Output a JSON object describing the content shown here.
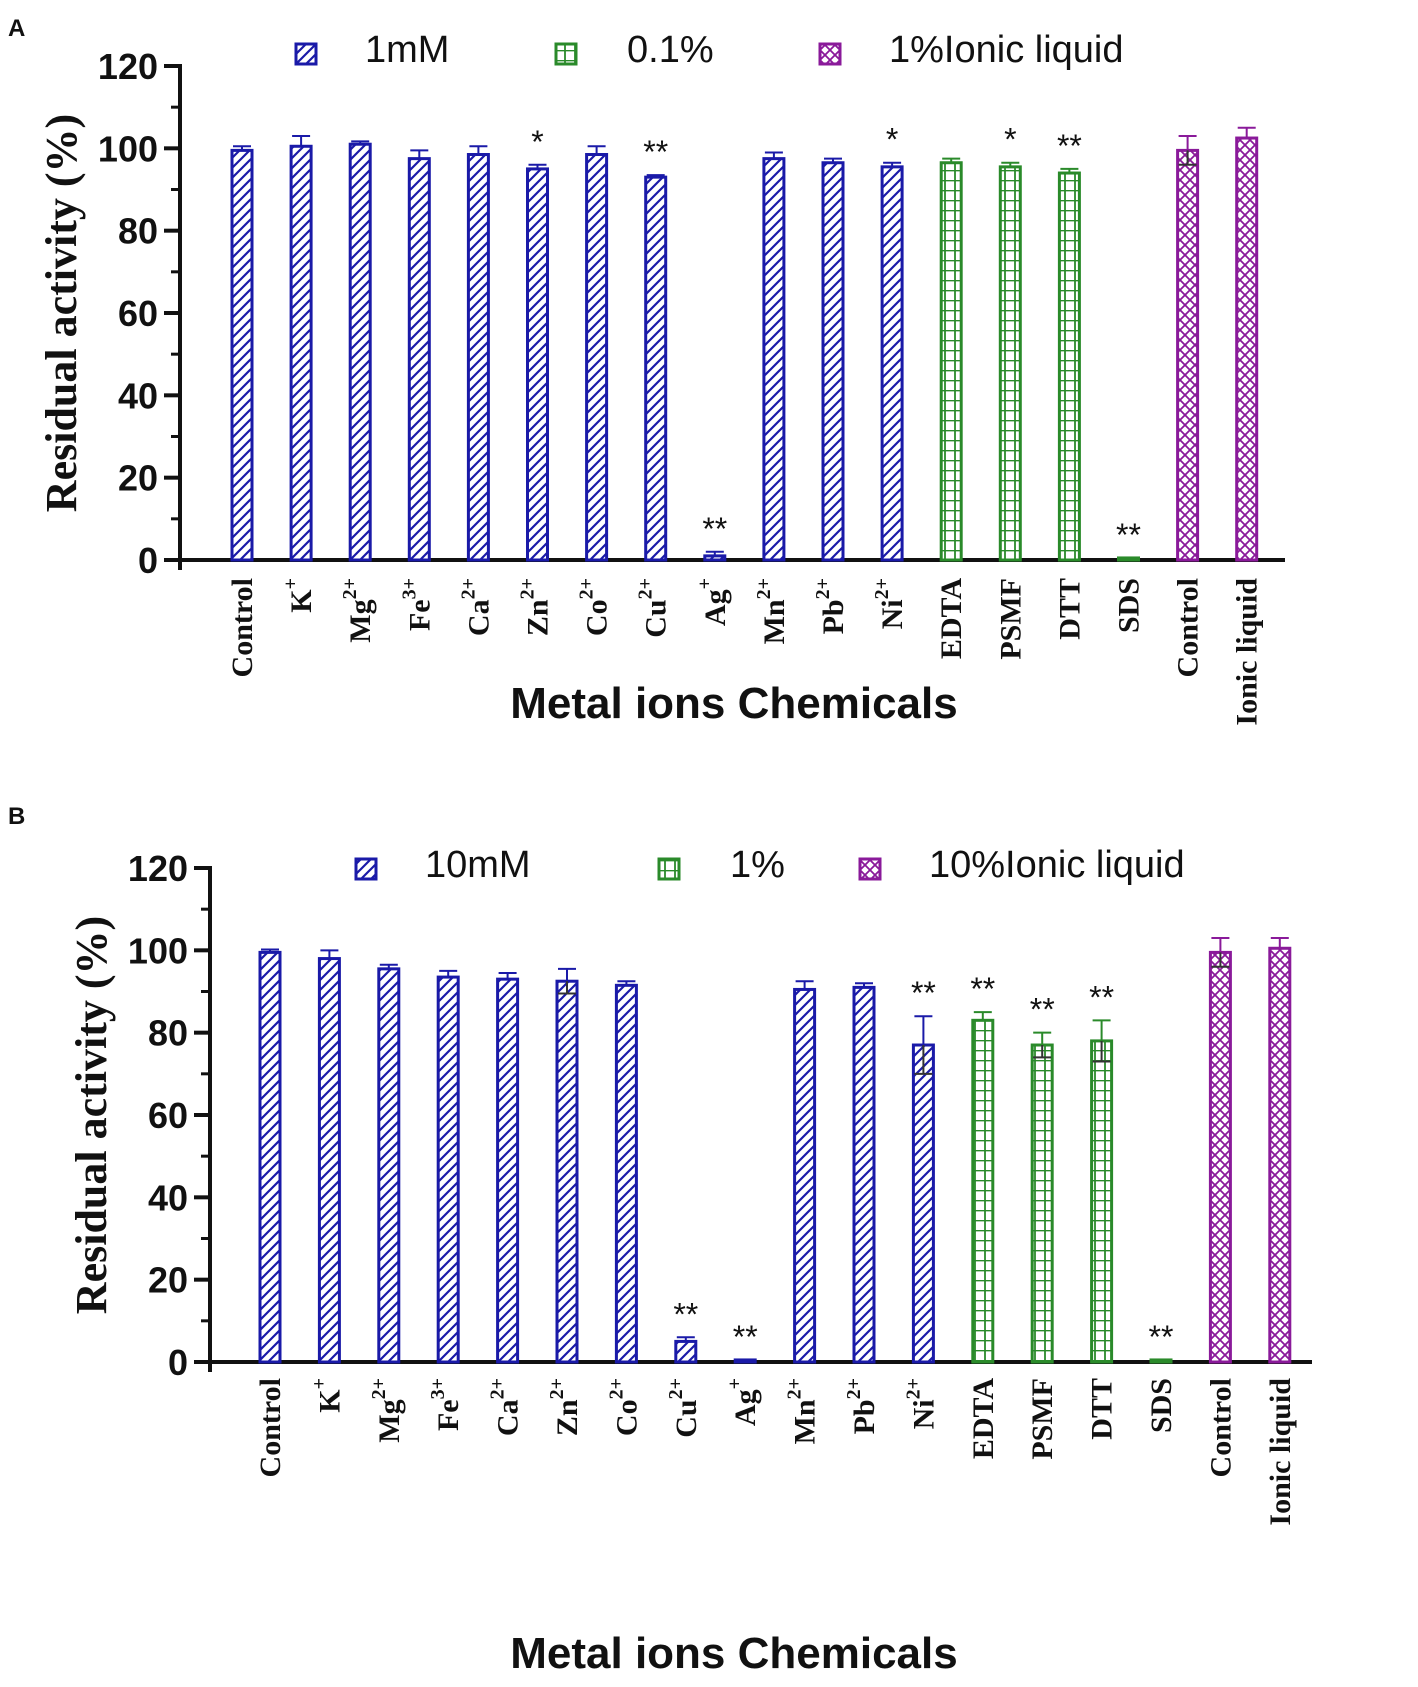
{
  "colors": {
    "blue": "#1a1aa8",
    "green": "#2a8a2a",
    "purple": "#8a1a9a",
    "axis": "#111111"
  },
  "chart_data": [
    {
      "type": "bar",
      "panel": "A",
      "ylabel": "Residual activity (%)",
      "xlabel": "Metal ions Chemicals",
      "ylim": [
        0,
        120
      ],
      "yticks": [
        "0",
        "20",
        "40",
        "60",
        "80",
        "100",
        "120"
      ],
      "legend": [
        {
          "label": "1mM",
          "color": "blue",
          "pattern": "hatch-diagonal"
        },
        {
          "label": "0.1%",
          "color": "green",
          "pattern": "grid"
        },
        {
          "label": "1%Ionic liquid",
          "color": "purple",
          "pattern": "crosshatch"
        }
      ],
      "bars": [
        {
          "label": "Control",
          "sup": "",
          "value": 99.5,
          "err": 1.0,
          "color": "blue",
          "pattern": "hatch-diagonal",
          "sig": ""
        },
        {
          "label": "K",
          "sup": "+",
          "value": 100.5,
          "err": 2.5,
          "color": "blue",
          "pattern": "hatch-diagonal",
          "sig": ""
        },
        {
          "label": "Mg",
          "sup": "2+",
          "value": 101.0,
          "err": 0.7,
          "color": "blue",
          "pattern": "hatch-diagonal",
          "sig": ""
        },
        {
          "label": "Fe",
          "sup": "3+",
          "value": 97.5,
          "err": 2.0,
          "color": "blue",
          "pattern": "hatch-diagonal",
          "sig": ""
        },
        {
          "label": "Ca",
          "sup": "2+",
          "value": 98.5,
          "err": 2.0,
          "color": "blue",
          "pattern": "hatch-diagonal",
          "sig": ""
        },
        {
          "label": "Zn",
          "sup": "2+",
          "value": 95.0,
          "err": 1.0,
          "color": "blue",
          "pattern": "hatch-diagonal",
          "sig": "*"
        },
        {
          "label": "Co",
          "sup": "2+",
          "value": 98.5,
          "err": 2.0,
          "color": "blue",
          "pattern": "hatch-diagonal",
          "sig": ""
        },
        {
          "label": "Cu",
          "sup": "2+",
          "value": 93.0,
          "err": 0.5,
          "color": "blue",
          "pattern": "hatch-diagonal",
          "sig": "**"
        },
        {
          "label": "Ag",
          "sup": "+",
          "value": 1.0,
          "err": 1.0,
          "color": "blue",
          "pattern": "hatch-diagonal",
          "sig": "**"
        },
        {
          "label": "Mn",
          "sup": "2+",
          "value": 97.5,
          "err": 1.5,
          "color": "blue",
          "pattern": "hatch-diagonal",
          "sig": ""
        },
        {
          "label": "Pb",
          "sup": "2+",
          "value": 96.5,
          "err": 1.0,
          "color": "blue",
          "pattern": "hatch-diagonal",
          "sig": ""
        },
        {
          "label": "Ni",
          "sup": "2+",
          "value": 95.5,
          "err": 1.0,
          "color": "blue",
          "pattern": "hatch-diagonal",
          "sig": "*"
        },
        {
          "label": "EDTA",
          "sup": "",
          "value": 96.5,
          "err": 1.0,
          "color": "green",
          "pattern": "grid",
          "sig": ""
        },
        {
          "label": "PSMF",
          "sup": "",
          "value": 95.5,
          "err": 1.0,
          "color": "green",
          "pattern": "grid",
          "sig": "*"
        },
        {
          "label": "DTT",
          "sup": "",
          "value": 94.0,
          "err": 1.0,
          "color": "green",
          "pattern": "grid",
          "sig": "**"
        },
        {
          "label": "SDS",
          "sup": "",
          "value": 0.5,
          "err": 0,
          "color": "green",
          "pattern": "grid",
          "sig": "**"
        },
        {
          "label": "Control",
          "sup": "",
          "value": 99.5,
          "err": 3.5,
          "color": "purple",
          "pattern": "crosshatch",
          "sig": ""
        },
        {
          "label": "Ionic liquid",
          "sup": "",
          "value": 102.5,
          "err": 2.5,
          "color": "purple",
          "pattern": "crosshatch",
          "sig": ""
        }
      ]
    },
    {
      "type": "bar",
      "panel": "B",
      "ylabel": "Residual activity (%)",
      "xlabel": "Metal ions Chemicals",
      "ylim": [
        0,
        120
      ],
      "yticks": [
        "0",
        "20",
        "40",
        "60",
        "80",
        "100",
        "120"
      ],
      "legend": [
        {
          "label": "10mM",
          "color": "blue",
          "pattern": "hatch-diagonal"
        },
        {
          "label": "1%",
          "color": "green",
          "pattern": "grid"
        },
        {
          "label": "10%Ionic liquid",
          "color": "purple",
          "pattern": "crosshatch"
        }
      ],
      "bars": [
        {
          "label": "Control",
          "sup": "",
          "value": 99.5,
          "err": 0.7,
          "color": "blue",
          "pattern": "hatch-diagonal",
          "sig": ""
        },
        {
          "label": "K",
          "sup": "+",
          "value": 98.0,
          "err": 2.0,
          "color": "blue",
          "pattern": "hatch-diagonal",
          "sig": ""
        },
        {
          "label": "Mg",
          "sup": "2+",
          "value": 95.5,
          "err": 1.0,
          "color": "blue",
          "pattern": "hatch-diagonal",
          "sig": ""
        },
        {
          "label": "Fe",
          "sup": "3+",
          "value": 93.5,
          "err": 1.5,
          "color": "blue",
          "pattern": "hatch-diagonal",
          "sig": ""
        },
        {
          "label": "Ca",
          "sup": "2+",
          "value": 93.0,
          "err": 1.5,
          "color": "blue",
          "pattern": "hatch-diagonal",
          "sig": ""
        },
        {
          "label": "Zn",
          "sup": "2+",
          "value": 92.5,
          "err": 3.0,
          "color": "blue",
          "pattern": "hatch-diagonal",
          "sig": ""
        },
        {
          "label": "Co",
          "sup": "2+",
          "value": 91.5,
          "err": 1.0,
          "color": "blue",
          "pattern": "hatch-diagonal",
          "sig": ""
        },
        {
          "label": "Cu",
          "sup": "2+",
          "value": 5.0,
          "err": 1.0,
          "color": "blue",
          "pattern": "hatch-diagonal",
          "sig": "**"
        },
        {
          "label": "Ag",
          "sup": "+",
          "value": 0.5,
          "err": 0,
          "color": "blue",
          "pattern": "hatch-diagonal",
          "sig": "**"
        },
        {
          "label": "Mn",
          "sup": "2+",
          "value": 90.5,
          "err": 2.0,
          "color": "blue",
          "pattern": "hatch-diagonal",
          "sig": ""
        },
        {
          "label": "Pb",
          "sup": "2+",
          "value": 91.0,
          "err": 1.0,
          "color": "blue",
          "pattern": "hatch-diagonal",
          "sig": ""
        },
        {
          "label": "Ni",
          "sup": "2+",
          "value": 77.0,
          "err": 7.0,
          "color": "blue",
          "pattern": "hatch-diagonal",
          "sig": "**"
        },
        {
          "label": "EDTA",
          "sup": "",
          "value": 83.0,
          "err": 2.0,
          "color": "green",
          "pattern": "grid",
          "sig": "**"
        },
        {
          "label": "PSMF",
          "sup": "",
          "value": 77.0,
          "err": 3.0,
          "color": "green",
          "pattern": "grid",
          "sig": "**"
        },
        {
          "label": "DTT",
          "sup": "",
          "value": 78.0,
          "err": 5.0,
          "color": "green",
          "pattern": "grid",
          "sig": "**"
        },
        {
          "label": "SDS",
          "sup": "",
          "value": 0.5,
          "err": 0,
          "color": "green",
          "pattern": "grid",
          "sig": "**"
        },
        {
          "label": "Control",
          "sup": "",
          "value": 99.5,
          "err": 3.5,
          "color": "purple",
          "pattern": "crosshatch",
          "sig": ""
        },
        {
          "label": "Ionic liquid",
          "sup": "",
          "value": 100.5,
          "err": 2.5,
          "color": "purple",
          "pattern": "crosshatch",
          "sig": ""
        }
      ]
    }
  ]
}
